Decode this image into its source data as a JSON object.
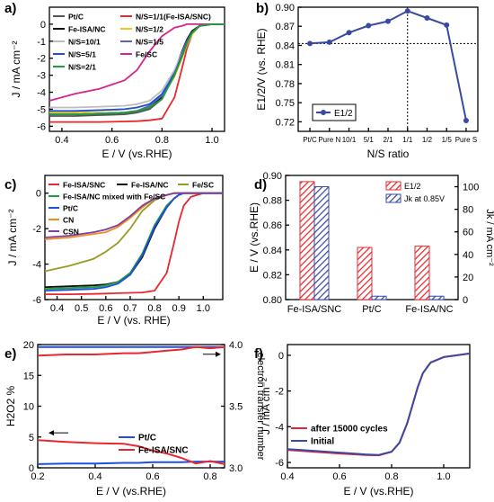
{
  "figure": {
    "panels": [
      {
        "key": "a",
        "panel_label": "a)",
        "xlabel": "E / V (vs.RHE)",
        "ylabel": "J / mA cm⁻²",
        "legend": [
          {
            "label": "Pt/C",
            "color": "#555555"
          },
          {
            "label": "N/S=1/1(Fe-ISA/SNC)",
            "color": "#e8282e"
          },
          {
            "label": "Fe-ISA/NC",
            "color": "#111111"
          },
          {
            "label": "N/S=1/2",
            "color": "#e8c81e"
          },
          {
            "label": "N/S=10/1",
            "color": "#bdbdbd"
          },
          {
            "label": "N/S=1/5",
            "color": "#5e63b5"
          },
          {
            "label": "N/S=5/1",
            "color": "#1f4fe0"
          },
          {
            "label": "Fe/SC",
            "color": "#d6248c"
          },
          {
            "label": "N/S=2/1",
            "color": "#1f9e3a"
          }
        ]
      },
      {
        "key": "b",
        "panel_label": "b)",
        "xlabel": "N/S ratio",
        "ylabel": "E1/2/V (vs. RHE)",
        "legend": [
          {
            "label": "E1/2",
            "color": "#3a4aa3"
          }
        ]
      },
      {
        "key": "c",
        "panel_label": "c)",
        "xlabel": "E / V (vs. RHE)",
        "ylabel": "J / mA cm⁻²",
        "legend": [
          {
            "label": "Fe-ISA/SNC",
            "color": "#e8282e"
          },
          {
            "label": "Fe-ISA/NC",
            "color": "#111111"
          },
          {
            "label": "Fe/SC",
            "color": "#9a9a22"
          },
          {
            "label": "Fe-ISA/NC mixed with Fe/SC",
            "color": "#1f9e3a"
          },
          {
            "label": "Pt/C",
            "color": "#1f4fe0"
          },
          {
            "label": "CN",
            "color": "#f08a1c"
          },
          {
            "label": "CSN",
            "color": "#7a3fa0"
          }
        ]
      },
      {
        "key": "d",
        "panel_label": "d)",
        "ylabel_left": "E / V (vs.RHE)",
        "ylabel_right": "Jk / mA cm⁻²",
        "legend": [
          {
            "label": "E1/2",
            "color": "#e8282e"
          },
          {
            "label": "Jk at 0.85V",
            "color": "#3a4aa3"
          }
        ]
      },
      {
        "key": "e",
        "panel_label": "e)",
        "xlabel": "E / V (vs.RHE)",
        "ylabel_left": "H2O2 %",
        "ylabel_right": "electron transfer number",
        "legend": [
          {
            "label": "Pt/C",
            "color": "#1f4fe0"
          },
          {
            "label": "Fe-ISA/SNC",
            "color": "#e8282e"
          }
        ]
      },
      {
        "key": "f",
        "panel_label": "f)",
        "xlabel": "E / V (vs.RHE)",
        "ylabel": "J / mA cm⁻²",
        "legend": [
          {
            "label": "after 15000 cycles",
            "color": "#e8282e"
          },
          {
            "label": "Initial",
            "color": "#3a4aa3"
          }
        ]
      }
    ]
  },
  "chart_data": [
    {
      "panel": "a",
      "type": "line",
      "x": [
        0.35,
        0.45,
        0.55,
        0.65,
        0.7,
        0.75,
        0.8,
        0.85,
        0.88,
        0.9,
        0.92,
        0.95,
        1.0,
        1.05
      ],
      "xlim": [
        0.35,
        1.05
      ],
      "ylim": [
        -6.3,
        1.0
      ],
      "xticks": [
        0.4,
        0.6,
        0.8,
        1.0
      ],
      "yticks": [
        0,
        -1,
        -2,
        -3,
        -4,
        -5,
        -6
      ],
      "series": [
        {
          "name": "Pt/C",
          "values": [
            -5.4,
            -5.4,
            -5.35,
            -5.3,
            -5.2,
            -5.0,
            -4.4,
            -2.9,
            -1.8,
            -1.0,
            -0.5,
            -0.1,
            0,
            0
          ]
        },
        {
          "name": "N/S=1/1(Fe-ISA/SNC)",
          "values": [
            -5.75,
            -5.75,
            -5.75,
            -5.72,
            -5.7,
            -5.65,
            -5.55,
            -4.3,
            -2.6,
            -1.4,
            -0.6,
            -0.1,
            0,
            0
          ]
        },
        {
          "name": "Fe-ISA/NC",
          "values": [
            -5.3,
            -5.3,
            -5.25,
            -5.2,
            -5.1,
            -4.9,
            -4.3,
            -2.8,
            -1.6,
            -0.9,
            -0.4,
            -0.1,
            0,
            0
          ]
        },
        {
          "name": "N/S=1/2",
          "values": [
            -5.2,
            -5.2,
            -5.1,
            -5.0,
            -4.9,
            -4.7,
            -4.2,
            -3.1,
            -2.0,
            -1.2,
            -0.6,
            -0.1,
            0,
            0
          ]
        },
        {
          "name": "N/S=10/1",
          "values": [
            -4.9,
            -4.9,
            -4.85,
            -4.8,
            -4.7,
            -4.5,
            -3.9,
            -2.7,
            -1.7,
            -1.0,
            -0.5,
            -0.1,
            0,
            0
          ]
        },
        {
          "name": "N/S=1/5",
          "values": [
            -5.3,
            -5.3,
            -5.25,
            -5.2,
            -5.1,
            -4.8,
            -4.2,
            -2.9,
            -1.9,
            -1.1,
            -0.5,
            -0.1,
            0,
            0
          ]
        },
        {
          "name": "N/S=5/1",
          "values": [
            -5.1,
            -5.1,
            -5.05,
            -5.0,
            -4.9,
            -4.7,
            -4.1,
            -2.9,
            -1.8,
            -1.0,
            -0.5,
            -0.1,
            0,
            0
          ]
        },
        {
          "name": "Fe/SC",
          "values": [
            -4.5,
            -4.1,
            -3.8,
            -3.3,
            -2.7,
            -1.6,
            -0.7,
            -0.2,
            -0.1,
            0,
            0,
            0,
            0,
            0
          ]
        },
        {
          "name": "N/S=2/1",
          "values": [
            -5.3,
            -5.3,
            -5.25,
            -5.2,
            -5.1,
            -4.9,
            -4.4,
            -3.0,
            -1.9,
            -1.1,
            -0.5,
            -0.1,
            0,
            0
          ]
        }
      ]
    },
    {
      "panel": "b",
      "type": "line",
      "categories": [
        "Pt/C",
        "Pure N",
        "10/1",
        "5/1",
        "2/1",
        "1/1",
        "1/2",
        "1/5",
        "Pure S"
      ],
      "xlim": [
        -0.6,
        8.6
      ],
      "ylim": [
        0.705,
        0.9
      ],
      "yticks": [
        0.72,
        0.75,
        0.78,
        0.81,
        0.84,
        0.87,
        0.9
      ],
      "reference_y": 0.843,
      "reference_x": 5,
      "series": [
        {
          "name": "E1/2",
          "values": [
            0.843,
            0.845,
            0.86,
            0.871,
            0.878,
            0.894,
            0.883,
            0.872,
            0.722
          ]
        }
      ]
    },
    {
      "panel": "c",
      "type": "line",
      "x": [
        0.35,
        0.45,
        0.55,
        0.6,
        0.65,
        0.7,
        0.75,
        0.8,
        0.85,
        0.88,
        0.9,
        0.92,
        0.95,
        1.0,
        1.08
      ],
      "xlim": [
        0.35,
        1.08
      ],
      "ylim": [
        -6.0,
        1.0
      ],
      "xticks": [
        0.4,
        0.5,
        0.6,
        0.7,
        0.8,
        0.9,
        1.0
      ],
      "yticks": [
        0,
        -2,
        -4,
        -6
      ],
      "series": [
        {
          "name": "Fe-ISA/SNC",
          "values": [
            -5.7,
            -5.7,
            -5.68,
            -5.66,
            -5.64,
            -5.62,
            -5.6,
            -5.5,
            -4.5,
            -2.8,
            -1.6,
            -0.7,
            -0.2,
            0,
            0
          ]
        },
        {
          "name": "Fe-ISA/NC",
          "values": [
            -5.3,
            -5.25,
            -5.2,
            -5.15,
            -5.0,
            -4.6,
            -3.6,
            -2.0,
            -0.8,
            -0.3,
            -0.1,
            0,
            0,
            0,
            0
          ]
        },
        {
          "name": "Fe/SC",
          "values": [
            -4.4,
            -4.1,
            -3.7,
            -3.3,
            -2.8,
            -2.0,
            -1.0,
            -0.4,
            -0.1,
            0,
            0,
            0,
            0,
            0,
            0
          ]
        },
        {
          "name": "Fe-ISA/NC mixed with Fe/SC",
          "values": [
            -5.4,
            -5.35,
            -5.3,
            -5.2,
            -5.0,
            -4.5,
            -3.4,
            -1.8,
            -0.7,
            -0.3,
            -0.1,
            0,
            0,
            0,
            0
          ]
        },
        {
          "name": "Pt/C",
          "values": [
            -5.5,
            -5.45,
            -5.4,
            -5.3,
            -5.1,
            -4.6,
            -3.5,
            -1.9,
            -0.8,
            -0.3,
            -0.1,
            0,
            0,
            0,
            0
          ]
        },
        {
          "name": "CN",
          "values": [
            -2.6,
            -2.5,
            -2.3,
            -2.2,
            -1.9,
            -1.4,
            -0.8,
            -0.3,
            -0.1,
            0,
            0,
            0,
            0,
            0,
            0
          ]
        },
        {
          "name": "CSN",
          "values": [
            -2.5,
            -2.4,
            -2.2,
            -2.05,
            -1.8,
            -1.3,
            -0.7,
            -0.3,
            -0.1,
            0,
            0,
            0,
            0,
            0,
            0
          ]
        }
      ]
    },
    {
      "panel": "d",
      "type": "bar",
      "categories": [
        "Fe-ISA/SNC",
        "Pt/C",
        "Fe-ISA/NC"
      ],
      "ylim_left": [
        0.8,
        0.9
      ],
      "yticks_left": [
        0.8,
        0.82,
        0.84,
        0.86,
        0.88,
        0.9
      ],
      "ylim_right": [
        0,
        110
      ],
      "yticks_right": [
        0,
        20,
        40,
        60,
        80,
        100
      ],
      "series": [
        {
          "name": "E1/2",
          "axis": "left",
          "values": [
            0.895,
            0.842,
            0.843
          ]
        },
        {
          "name": "Jk at 0.85V",
          "axis": "right",
          "values": [
            100,
            3,
            3
          ]
        }
      ]
    },
    {
      "panel": "e",
      "type": "line",
      "x": [
        0.2,
        0.3,
        0.4,
        0.5,
        0.55,
        0.6,
        0.65,
        0.7,
        0.75,
        0.8,
        0.85
      ],
      "xlim": [
        0.2,
        0.85
      ],
      "ylim_left": [
        0,
        20
      ],
      "yticks_left": [
        0,
        5,
        10,
        15,
        20
      ],
      "ylim_right": [
        3.0,
        4.0
      ],
      "yticks_right": [
        3.0,
        3.5,
        4.0
      ],
      "xticks": [
        0.2,
        0.4,
        0.6,
        0.8
      ],
      "series": [
        {
          "name": "Pt/C",
          "axis": "left",
          "values": [
            0.6,
            0.7,
            0.7,
            0.8,
            0.8,
            0.9,
            0.9,
            0.9,
            1.0,
            1.0,
            1.0
          ]
        },
        {
          "name": "Fe-ISA/SNC",
          "axis": "left",
          "values": [
            4.5,
            4.2,
            4.0,
            3.9,
            3.5,
            2.8,
            2.3,
            1.6,
            0.7,
            1.1,
            0.6
          ]
        },
        {
          "name": "Pt/C n",
          "axis": "right",
          "values": [
            3.98,
            3.98,
            3.98,
            3.98,
            3.98,
            3.98,
            3.98,
            3.98,
            3.98,
            3.98,
            3.98
          ]
        },
        {
          "name": "Fe-ISA/SNC n",
          "axis": "right",
          "values": [
            3.91,
            3.92,
            3.92,
            3.93,
            3.93,
            3.94,
            3.95,
            3.96,
            3.98,
            3.97,
            3.98
          ]
        }
      ]
    },
    {
      "panel": "f",
      "type": "line",
      "x": [
        0.4,
        0.45,
        0.5,
        0.6,
        0.7,
        0.75,
        0.8,
        0.83,
        0.86,
        0.88,
        0.9,
        0.92,
        0.95,
        1.0,
        1.1
      ],
      "xlim": [
        0.4,
        1.1
      ],
      "ylim": [
        -6.3,
        0.6
      ],
      "xticks": [
        0.4,
        0.6,
        0.8,
        1.0
      ],
      "yticks": [
        0,
        -2,
        -4,
        -6
      ],
      "series": [
        {
          "name": "after 15000 cycles",
          "values": [
            -5.3,
            -5.35,
            -5.4,
            -5.5,
            -5.58,
            -5.6,
            -5.4,
            -4.9,
            -3.8,
            -2.8,
            -1.8,
            -1.0,
            -0.4,
            -0.1,
            0.1
          ]
        },
        {
          "name": "Initial",
          "values": [
            -5.25,
            -5.3,
            -5.35,
            -5.45,
            -5.55,
            -5.58,
            -5.4,
            -4.9,
            -3.8,
            -2.8,
            -1.8,
            -1.0,
            -0.4,
            -0.1,
            0.1
          ]
        }
      ]
    }
  ]
}
